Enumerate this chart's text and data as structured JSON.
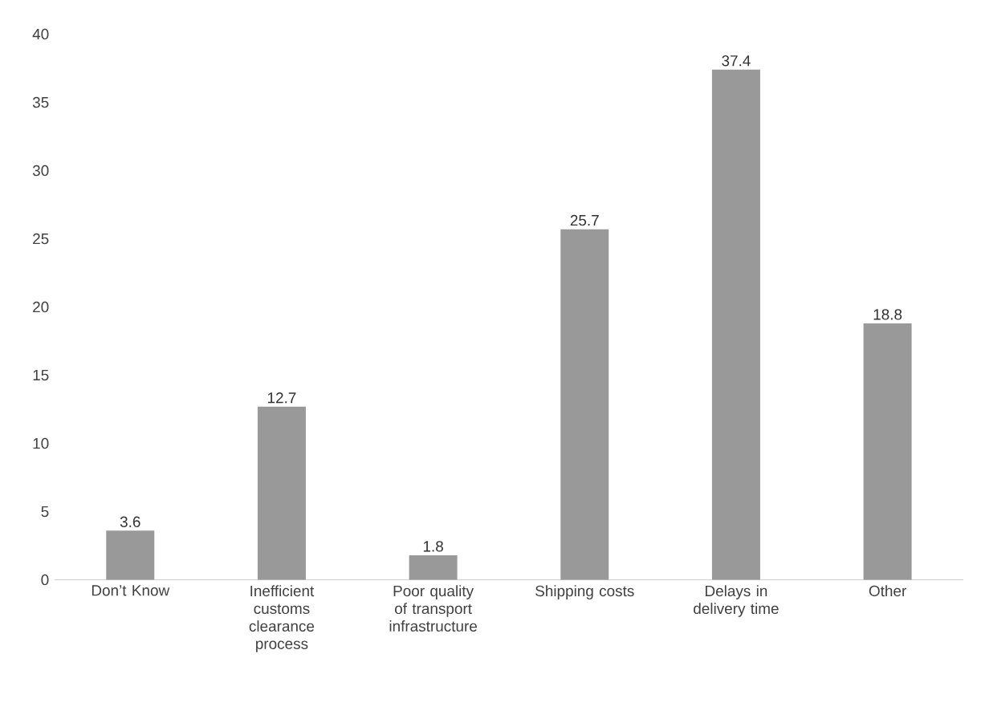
{
  "chart_data": {
    "type": "bar",
    "categories": [
      "Don’t Know",
      "Inefficient customs clearance process",
      "Poor quality of transport infrastructure",
      "Shipping costs",
      "Delays in delivery time",
      "Other"
    ],
    "values": [
      3.6,
      12.7,
      1.8,
      25.7,
      37.4,
      18.8
    ],
    "color": "#999999",
    "ylim": [
      0,
      40
    ],
    "yticks": [
      0,
      5,
      10,
      15,
      20,
      25,
      30,
      35,
      40
    ],
    "data_labels": true
  }
}
